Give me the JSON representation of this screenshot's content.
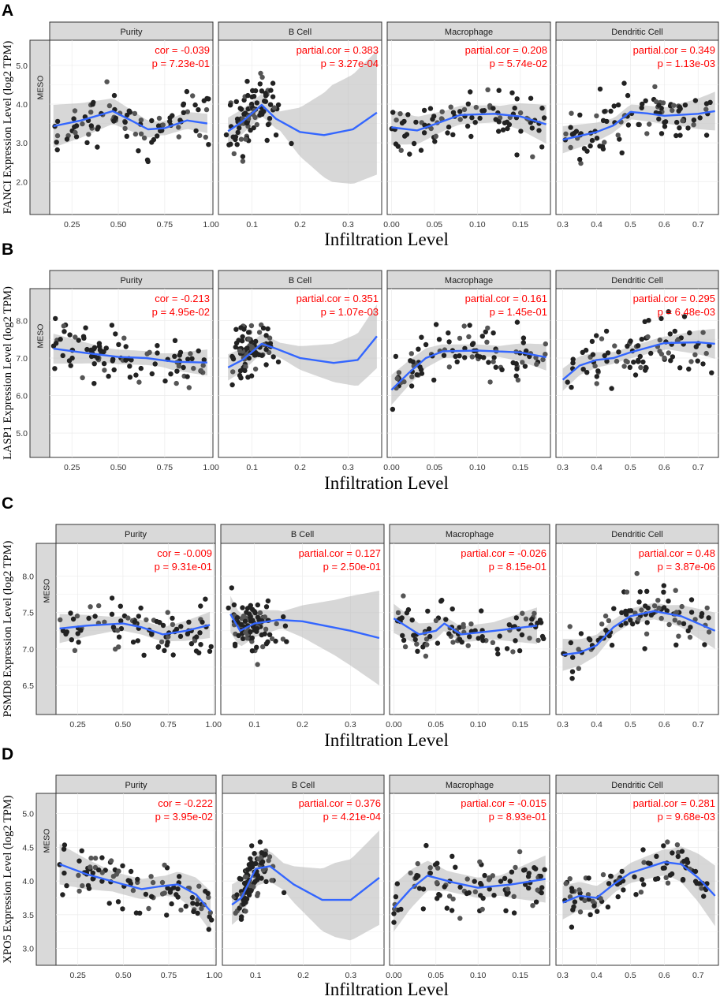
{
  "chart_data": [
    {
      "type": "scatter",
      "panel_label": "A",
      "ylabel": "FANCI Expression Level (log2 TPM)",
      "xlabel": "Infiltration Level",
      "row_strip": "MESO",
      "ylim": [
        1.15,
        5.65
      ],
      "yticks": [
        2.0,
        3.0,
        4.0,
        5.0
      ],
      "ytick_labels": [
        "2.0",
        "3.0",
        "4.0",
        "5.0"
      ],
      "facets": [
        {
          "title": "Purity",
          "stat1": "cor = -0.039",
          "stat2": "p = 7.23e-01",
          "xlim": [
            0.13,
            1.01
          ],
          "xticks": [
            0.25,
            0.5,
            0.75,
            1.0
          ],
          "xtick_labels": [
            "0.25",
            "0.50",
            "0.75",
            "1.00"
          ],
          "fit": [
            [
              0.15,
              3.43
            ],
            [
              0.3,
              3.58
            ],
            [
              0.47,
              3.82
            ],
            [
              0.58,
              3.55
            ],
            [
              0.66,
              3.35
            ],
            [
              0.75,
              3.38
            ],
            [
              0.87,
              3.58
            ],
            [
              0.98,
              3.5
            ]
          ],
          "ci": [
            0.55,
            0.35,
            0.18,
            0.25
          ]
        },
        {
          "title": "B Cell",
          "stat1": "partial.cor = 0.383",
          "stat2": "p = 3.27e-04",
          "xlim": [
            0.03,
            0.37
          ],
          "xticks": [
            0.1,
            0.2,
            0.3
          ],
          "xtick_labels": [
            "0.1",
            "0.2",
            "0.3"
          ],
          "fit": [
            [
              0.05,
              3.3
            ],
            [
              0.08,
              3.55
            ],
            [
              0.12,
              3.98
            ],
            [
              0.15,
              3.62
            ],
            [
              0.2,
              3.28
            ],
            [
              0.25,
              3.2
            ],
            [
              0.31,
              3.35
            ],
            [
              0.36,
              3.78
            ]
          ],
          "ci": [
            0.35,
            0.25,
            1.25,
            1.6
          ]
        },
        {
          "title": "Macrophage",
          "stat1": "partial.cor = 0.208",
          "stat2": "p = 5.74e-02",
          "xlim": [
            -0.005,
            0.185
          ],
          "xticks": [
            0.0,
            0.05,
            0.1,
            0.15
          ],
          "xtick_labels": [
            "0.00",
            "0.05",
            "0.10",
            "0.15"
          ],
          "fit": [
            [
              0.0,
              3.4
            ],
            [
              0.03,
              3.32
            ],
            [
              0.05,
              3.48
            ],
            [
              0.08,
              3.72
            ],
            [
              0.12,
              3.75
            ],
            [
              0.15,
              3.68
            ],
            [
              0.18,
              3.48
            ]
          ],
          "ci": [
            0.45,
            0.25,
            0.22,
            0.5
          ]
        },
        {
          "title": "Dendritic Cell",
          "stat1": "partial.cor = 0.349",
          "stat2": "p = 1.13e-03",
          "xlim": [
            0.28,
            0.76
          ],
          "xticks": [
            0.3,
            0.4,
            0.5,
            0.6,
            0.7
          ],
          "xtick_labels": [
            "0.3",
            "0.4",
            "0.5",
            "0.6",
            "0.7"
          ],
          "fit": [
            [
              0.3,
              3.08
            ],
            [
              0.4,
              3.28
            ],
            [
              0.45,
              3.45
            ],
            [
              0.5,
              3.8
            ],
            [
              0.55,
              3.76
            ],
            [
              0.6,
              3.7
            ],
            [
              0.7,
              3.75
            ],
            [
              0.75,
              3.82
            ]
          ],
          "ci": [
            0.35,
            0.18,
            0.22,
            0.5
          ]
        }
      ]
    },
    {
      "type": "scatter",
      "panel_label": "B",
      "ylabel": "LASP1 Expression Level (log2 TPM)",
      "xlabel": "Infiltration Level",
      "row_strip": "MESO",
      "ylim": [
        4.35,
        8.85
      ],
      "yticks": [
        5.0,
        6.0,
        7.0,
        8.0
      ],
      "ytick_labels": [
        "5.0",
        "6.0",
        "7.0",
        "8.0"
      ],
      "facets": [
        {
          "title": "Purity",
          "stat1": "cor = -0.213",
          "stat2": "p = 4.95e-02",
          "xlim": [
            0.13,
            1.01
          ],
          "xticks": [
            0.25,
            0.5,
            0.75,
            1.0
          ],
          "xtick_labels": [
            "0.25",
            "0.50",
            "0.75",
            "1.00"
          ],
          "fit": [
            [
              0.15,
              7.25
            ],
            [
              0.3,
              7.15
            ],
            [
              0.5,
              7.03
            ],
            [
              0.65,
              7.0
            ],
            [
              0.8,
              6.9
            ],
            [
              0.98,
              6.88
            ]
          ],
          "ci": [
            0.4,
            0.2,
            0.18,
            0.35
          ]
        },
        {
          "title": "B Cell",
          "stat1": "partial.cor = 0.351",
          "stat2": "p = 1.07e-03",
          "xlim": [
            0.03,
            0.37
          ],
          "xticks": [
            0.1,
            0.2,
            0.3
          ],
          "xtick_labels": [
            "0.1",
            "0.2",
            "0.3"
          ],
          "fit": [
            [
              0.05,
              6.75
            ],
            [
              0.08,
              6.95
            ],
            [
              0.12,
              7.38
            ],
            [
              0.15,
              7.25
            ],
            [
              0.2,
              7.0
            ],
            [
              0.27,
              6.87
            ],
            [
              0.32,
              6.95
            ],
            [
              0.36,
              7.58
            ]
          ],
          "ci": [
            0.35,
            0.2,
            0.5,
            0.85
          ]
        },
        {
          "title": "Macrophage",
          "stat1": "partial.cor = 0.161",
          "stat2": "p = 1.45e-01",
          "xlim": [
            -0.005,
            0.185
          ],
          "xticks": [
            0.0,
            0.05,
            0.1,
            0.15
          ],
          "xtick_labels": [
            "0.00",
            "0.05",
            "0.10",
            "0.15"
          ],
          "fit": [
            [
              0.0,
              6.15
            ],
            [
              0.02,
              6.6
            ],
            [
              0.04,
              7.0
            ],
            [
              0.06,
              7.18
            ],
            [
              0.1,
              7.2
            ],
            [
              0.15,
              7.15
            ],
            [
              0.18,
              7.02
            ]
          ],
          "ci": [
            0.4,
            0.18,
            0.15,
            0.35
          ]
        },
        {
          "title": "Dendritic Cell",
          "stat1": "partial.cor = 0.295",
          "stat2": "p = 6.48e-03",
          "xlim": [
            0.28,
            0.76
          ],
          "xticks": [
            0.3,
            0.4,
            0.5,
            0.6,
            0.7
          ],
          "xtick_labels": [
            "0.3",
            "0.4",
            "0.5",
            "0.6",
            "0.7"
          ],
          "fit": [
            [
              0.3,
              6.42
            ],
            [
              0.35,
              6.8
            ],
            [
              0.4,
              6.95
            ],
            [
              0.45,
              7.0
            ],
            [
              0.5,
              7.15
            ],
            [
              0.6,
              7.4
            ],
            [
              0.7,
              7.42
            ],
            [
              0.75,
              7.38
            ]
          ],
          "ci": [
            0.3,
            0.15,
            0.18,
            0.4
          ]
        }
      ]
    },
    {
      "type": "scatter",
      "panel_label": "C",
      "ylabel": "PSMD8 Expression Level (log2 TPM)",
      "xlabel": "Infiltration Level",
      "row_strip": "MESO",
      "ylim": [
        6.1,
        8.45
      ],
      "yticks": [
        6.5,
        7.0,
        7.5,
        8.0
      ],
      "ytick_labels": [
        "6.5",
        "7.0",
        "7.5",
        "8.0"
      ],
      "facets": [
        {
          "title": "Purity",
          "stat1": "cor = -0.009",
          "stat2": "p = 9.31e-01",
          "xlim": [
            0.13,
            1.01
          ],
          "xticks": [
            0.25,
            0.5,
            0.75,
            1.0
          ],
          "xtick_labels": [
            "0.25",
            "0.50",
            "0.75",
            "1.00"
          ],
          "fit": [
            [
              0.15,
              7.28
            ],
            [
              0.3,
              7.32
            ],
            [
              0.5,
              7.35
            ],
            [
              0.6,
              7.3
            ],
            [
              0.72,
              7.2
            ],
            [
              0.85,
              7.25
            ],
            [
              0.98,
              7.33
            ]
          ],
          "ci": [
            0.2,
            0.1,
            0.1,
            0.18
          ]
        },
        {
          "title": "B Cell",
          "stat1": "partial.cor = 0.127",
          "stat2": "p = 2.50e-01",
          "xlim": [
            0.03,
            0.37
          ],
          "xticks": [
            0.1,
            0.2,
            0.3
          ],
          "xtick_labels": [
            "0.1",
            "0.2",
            "0.3"
          ],
          "fit": [
            [
              0.05,
              7.48
            ],
            [
              0.07,
              7.25
            ],
            [
              0.1,
              7.35
            ],
            [
              0.15,
              7.4
            ],
            [
              0.2,
              7.38
            ],
            [
              0.3,
              7.25
            ],
            [
              0.36,
              7.15
            ]
          ],
          "ci": [
            0.25,
            0.12,
            0.38,
            0.65
          ]
        },
        {
          "title": "Macrophage",
          "stat1": "partial.cor = -0.026",
          "stat2": "p = 8.15e-01",
          "xlim": [
            -0.005,
            0.185
          ],
          "xticks": [
            0.0,
            0.05,
            0.1,
            0.15
          ],
          "xtick_labels": [
            "0.00",
            "0.05",
            "0.10",
            "0.15"
          ],
          "fit": [
            [
              0.0,
              7.42
            ],
            [
              0.03,
              7.2
            ],
            [
              0.05,
              7.25
            ],
            [
              0.06,
              7.35
            ],
            [
              0.08,
              7.2
            ],
            [
              0.12,
              7.25
            ],
            [
              0.17,
              7.32
            ]
          ],
          "ci": [
            0.2,
            0.1,
            0.12,
            0.25
          ]
        },
        {
          "title": "Dendritic Cell",
          "stat1": "partial.cor = 0.48",
          "stat2": "p = 3.87e-06",
          "xlim": [
            0.28,
            0.76
          ],
          "xticks": [
            0.3,
            0.4,
            0.5,
            0.6,
            0.7
          ],
          "xtick_labels": [
            "0.3",
            "0.4",
            "0.5",
            "0.6",
            "0.7"
          ],
          "fit": [
            [
              0.3,
              6.92
            ],
            [
              0.35,
              6.95
            ],
            [
              0.4,
              7.05
            ],
            [
              0.45,
              7.3
            ],
            [
              0.5,
              7.45
            ],
            [
              0.57,
              7.52
            ],
            [
              0.65,
              7.45
            ],
            [
              0.75,
              7.25
            ]
          ],
          "ci": [
            0.22,
            0.1,
            0.12,
            0.25
          ]
        }
      ]
    },
    {
      "type": "scatter",
      "panel_label": "D",
      "ylabel": "XPO5 Expression Level (log2 TPM)",
      "xlabel": "Infiltration Level",
      "row_strip": "MESO",
      "ylim": [
        2.75,
        5.3
      ],
      "yticks": [
        3.0,
        3.5,
        4.0,
        4.5,
        5.0
      ],
      "ytick_labels": [
        "3.0",
        "3.5",
        "4.0",
        "4.5",
        "5.0"
      ],
      "facets": [
        {
          "title": "Purity",
          "stat1": "cor = -0.222",
          "stat2": "p = 3.95e-02",
          "xlim": [
            0.13,
            1.01
          ],
          "xticks": [
            0.25,
            0.5,
            0.75,
            1.0
          ],
          "xtick_labels": [
            "0.25",
            "0.50",
            "0.75",
            "1.00"
          ],
          "fit": [
            [
              0.15,
              4.25
            ],
            [
              0.3,
              4.1
            ],
            [
              0.5,
              3.95
            ],
            [
              0.6,
              3.88
            ],
            [
              0.7,
              3.92
            ],
            [
              0.8,
              3.95
            ],
            [
              0.9,
              3.8
            ],
            [
              0.98,
              3.55
            ]
          ],
          "ci": [
            0.3,
            0.15,
            0.15,
            0.3
          ]
        },
        {
          "title": "B Cell",
          "stat1": "partial.cor = 0.376",
          "stat2": "p = 4.21e-04",
          "xlim": [
            0.03,
            0.37
          ],
          "xticks": [
            0.1,
            0.2,
            0.3
          ],
          "xtick_labels": [
            "0.1",
            "0.2",
            "0.3"
          ],
          "fit": [
            [
              0.05,
              3.65
            ],
            [
              0.07,
              3.75
            ],
            [
              0.1,
              4.18
            ],
            [
              0.13,
              4.22
            ],
            [
              0.18,
              3.95
            ],
            [
              0.24,
              3.72
            ],
            [
              0.3,
              3.72
            ],
            [
              0.36,
              4.05
            ]
          ],
          "ci": [
            0.3,
            0.2,
            0.55,
            0.7
          ]
        },
        {
          "title": "Macrophage",
          "stat1": "partial.cor = -0.015",
          "stat2": "p = 8.93e-01",
          "xlim": [
            -0.005,
            0.185
          ],
          "xticks": [
            0.0,
            0.05,
            0.1,
            0.15
          ],
          "xtick_labels": [
            "0.00",
            "0.05",
            "0.10",
            "0.15"
          ],
          "fit": [
            [
              0.0,
              3.6
            ],
            [
              0.02,
              3.88
            ],
            [
              0.04,
              4.08
            ],
            [
              0.07,
              3.98
            ],
            [
              0.1,
              3.9
            ],
            [
              0.14,
              3.95
            ],
            [
              0.18,
              4.03
            ]
          ],
          "ci": [
            0.35,
            0.15,
            0.15,
            0.35
          ]
        },
        {
          "title": "Dendritic Cell",
          "stat1": "partial.cor = 0.281",
          "stat2": "p = 9.68e-03",
          "xlim": [
            0.28,
            0.76
          ],
          "xticks": [
            0.3,
            0.4,
            0.5,
            0.6,
            0.7
          ],
          "xtick_labels": [
            "0.3",
            "0.4",
            "0.5",
            "0.6",
            "0.7"
          ],
          "fit": [
            [
              0.3,
              3.68
            ],
            [
              0.35,
              3.78
            ],
            [
              0.4,
              3.75
            ],
            [
              0.45,
              3.95
            ],
            [
              0.5,
              4.12
            ],
            [
              0.6,
              4.28
            ],
            [
              0.65,
              4.25
            ],
            [
              0.7,
              4.05
            ],
            [
              0.75,
              3.78
            ]
          ],
          "ci": [
            0.25,
            0.13,
            0.2,
            0.45
          ]
        }
      ]
    }
  ]
}
